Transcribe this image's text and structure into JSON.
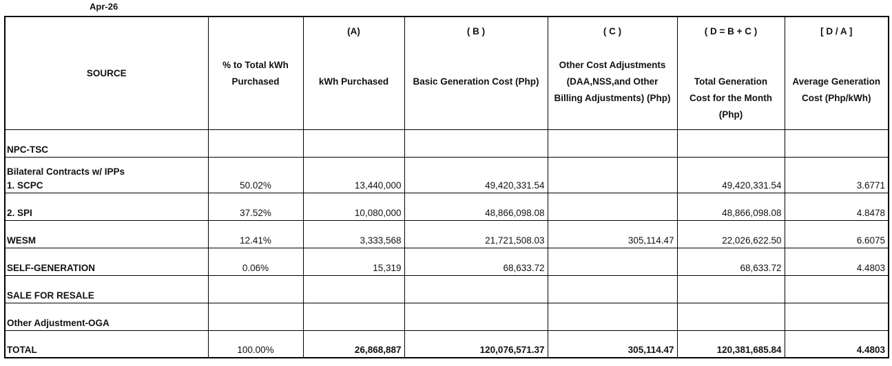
{
  "period": "Apr-26",
  "columns": {
    "source": {
      "title": "SOURCE"
    },
    "pct": {
      "title_line1": "% to Total kWh",
      "title_line2": "Purchased"
    },
    "kwh": {
      "letter": "(A)",
      "title": "kWh Purchased"
    },
    "basic": {
      "letter": "( B )",
      "title": "Basic Generation Cost (Php)"
    },
    "other": {
      "letter": "( C )",
      "title_line1": "Other Cost Adjustments",
      "title_line2": "(DAA,NSS,and Other",
      "title_line3": "Billing Adjustments) (Php)"
    },
    "total_gen": {
      "letter": "( D = B + C )",
      "title_line1": "Total Generation",
      "title_line2": "Cost for the Month",
      "title_line3": "(Php)"
    },
    "avg": {
      "letter": "[ D / A ]",
      "title_line1": "Average Generation",
      "title_line2": "Cost (Php/kWh)"
    }
  },
  "rows": [
    {
      "source": "NPC-TSC",
      "pct": "",
      "kwh": "",
      "basic": "",
      "other": "",
      "total_gen": "",
      "avg": ""
    },
    {
      "source_line1": "Bilateral Contracts w/ IPPs",
      "source": "1. SCPC",
      "pct": "50.02%",
      "kwh": "13,440,000",
      "basic": "49,420,331.54",
      "other": "",
      "total_gen": "49,420,331.54",
      "avg": "3.6771"
    },
    {
      "source": "2. SPI",
      "pct": "37.52%",
      "kwh": "10,080,000",
      "basic": "48,866,098.08",
      "other": "",
      "total_gen": "48,866,098.08",
      "avg": "4.8478"
    },
    {
      "source": "WESM",
      "pct": "12.41%",
      "kwh": "3,333,568",
      "basic": "21,721,508.03",
      "other": "305,114.47",
      "total_gen": "22,026,622.50",
      "avg": "6.6075"
    },
    {
      "source": "SELF-GENERATION",
      "pct": "0.06%",
      "kwh": "15,319",
      "basic": "68,633.72",
      "other": "",
      "total_gen": "68,633.72",
      "avg": "4.4803"
    },
    {
      "source": "SALE FOR RESALE",
      "pct": "",
      "kwh": "",
      "basic": "",
      "other": "",
      "total_gen": "",
      "avg": ""
    },
    {
      "source": "Other Adjustment-OGA",
      "pct": "",
      "kwh": "",
      "basic": "",
      "other": "",
      "total_gen": "",
      "avg": ""
    },
    {
      "source": "TOTAL",
      "pct": "100.00%",
      "kwh": "26,868,887",
      "basic": "120,076,571.37",
      "other": "305,114.47",
      "total_gen": "120,381,685.84",
      "avg": "4.4803"
    }
  ]
}
